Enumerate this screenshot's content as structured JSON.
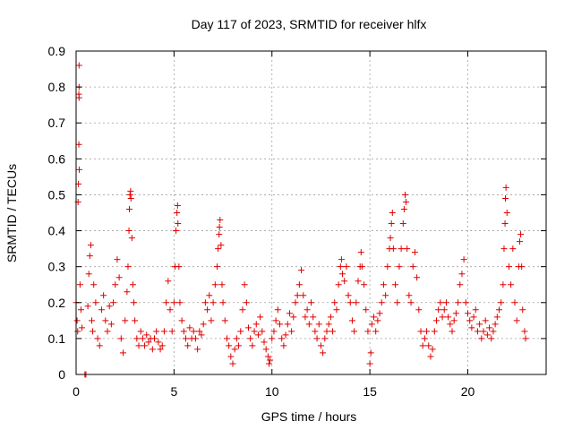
{
  "chart_data": {
    "type": "scatter",
    "title": "Day 117 of 2023, SRMTID for receiver hlfx",
    "xlabel": "GPS time / hours",
    "ylabel": "SRMTID / TECUs",
    "xlim": [
      0,
      24
    ],
    "ylim": [
      0,
      0.9
    ],
    "xticks": [
      0,
      5,
      10,
      15,
      20
    ],
    "yticks": [
      0,
      0.1,
      0.2,
      0.3,
      0.4,
      0.5,
      0.6,
      0.7,
      0.8,
      0.9
    ],
    "xtick_labels": [
      "0",
      "5",
      "10",
      "15",
      "20"
    ],
    "ytick_labels": [
      "0",
      "0.1",
      "0.2",
      "0.3",
      "0.4",
      "0.5",
      "0.6",
      "0.7",
      "0.8",
      "0.9"
    ],
    "grid": true,
    "marker": "+",
    "color": "#e00000",
    "series": [
      {
        "name": "SRMTID",
        "points": [
          [
            0.0,
            0.2
          ],
          [
            0.05,
            0.15
          ],
          [
            0.08,
            0.12
          ],
          [
            0.1,
            0.48
          ],
          [
            0.12,
            0.53
          ],
          [
            0.14,
            0.64
          ],
          [
            0.16,
            0.57
          ],
          [
            0.15,
            0.77
          ],
          [
            0.14,
            0.78
          ],
          [
            0.15,
            0.8
          ],
          [
            0.15,
            0.86
          ],
          [
            0.2,
            0.25
          ],
          [
            0.25,
            0.18
          ],
          [
            0.3,
            0.13
          ],
          [
            0.45,
            0.0
          ],
          [
            0.5,
            0.0
          ],
          [
            0.6,
            0.19
          ],
          [
            0.65,
            0.28
          ],
          [
            0.7,
            0.33
          ],
          [
            0.75,
            0.36
          ],
          [
            0.8,
            0.15
          ],
          [
            0.85,
            0.12
          ],
          [
            0.9,
            0.25
          ],
          [
            1.0,
            0.2
          ],
          [
            1.1,
            0.1
          ],
          [
            1.2,
            0.08
          ],
          [
            1.3,
            0.18
          ],
          [
            1.4,
            0.22
          ],
          [
            1.5,
            0.15
          ],
          [
            1.6,
            0.12
          ],
          [
            1.7,
            0.19
          ],
          [
            1.8,
            0.14
          ],
          [
            1.9,
            0.2
          ],
          [
            2.0,
            0.25
          ],
          [
            2.1,
            0.32
          ],
          [
            2.2,
            0.27
          ],
          [
            2.3,
            0.1
          ],
          [
            2.4,
            0.06
          ],
          [
            2.5,
            0.15
          ],
          [
            2.6,
            0.23
          ],
          [
            2.65,
            0.3
          ],
          [
            2.7,
            0.4
          ],
          [
            2.72,
            0.46
          ],
          [
            2.75,
            0.5
          ],
          [
            2.78,
            0.51
          ],
          [
            2.8,
            0.49
          ],
          [
            2.85,
            0.38
          ],
          [
            2.9,
            0.25
          ],
          [
            2.95,
            0.2
          ],
          [
            3.0,
            0.15
          ],
          [
            3.1,
            0.1
          ],
          [
            3.2,
            0.08
          ],
          [
            3.3,
            0.12
          ],
          [
            3.4,
            0.1
          ],
          [
            3.5,
            0.08
          ],
          [
            3.6,
            0.11
          ],
          [
            3.7,
            0.09
          ],
          [
            3.8,
            0.1
          ],
          [
            3.9,
            0.07
          ],
          [
            4.0,
            0.1
          ],
          [
            4.1,
            0.12
          ],
          [
            4.2,
            0.09
          ],
          [
            4.3,
            0.07
          ],
          [
            4.4,
            0.08
          ],
          [
            4.5,
            0.12
          ],
          [
            4.6,
            0.2
          ],
          [
            4.7,
            0.26
          ],
          [
            4.8,
            0.18
          ],
          [
            4.9,
            0.12
          ],
          [
            5.0,
            0.2
          ],
          [
            5.05,
            0.3
          ],
          [
            5.1,
            0.4
          ],
          [
            5.15,
            0.45
          ],
          [
            5.18,
            0.47
          ],
          [
            5.2,
            0.42
          ],
          [
            5.25,
            0.3
          ],
          [
            5.3,
            0.2
          ],
          [
            5.4,
            0.15
          ],
          [
            5.5,
            0.12
          ],
          [
            5.6,
            0.1
          ],
          [
            5.7,
            0.08
          ],
          [
            5.8,
            0.13
          ],
          [
            5.9,
            0.1
          ],
          [
            6.0,
            0.12
          ],
          [
            6.1,
            0.1
          ],
          [
            6.2,
            0.07
          ],
          [
            6.3,
            0.12
          ],
          [
            6.4,
            0.11
          ],
          [
            6.5,
            0.14
          ],
          [
            6.6,
            0.2
          ],
          [
            6.7,
            0.18
          ],
          [
            6.8,
            0.22
          ],
          [
            6.9,
            0.15
          ],
          [
            7.0,
            0.2
          ],
          [
            7.1,
            0.25
          ],
          [
            7.2,
            0.3
          ],
          [
            7.25,
            0.35
          ],
          [
            7.3,
            0.39
          ],
          [
            7.32,
            0.41
          ],
          [
            7.35,
            0.43
          ],
          [
            7.4,
            0.36
          ],
          [
            7.45,
            0.25
          ],
          [
            7.5,
            0.2
          ],
          [
            7.6,
            0.15
          ],
          [
            7.7,
            0.1
          ],
          [
            7.8,
            0.08
          ],
          [
            7.9,
            0.05
          ],
          [
            8.0,
            0.03
          ],
          [
            8.1,
            0.07
          ],
          [
            8.2,
            0.1
          ],
          [
            8.3,
            0.08
          ],
          [
            8.4,
            0.12
          ],
          [
            8.5,
            0.18
          ],
          [
            8.6,
            0.25
          ],
          [
            8.7,
            0.2
          ],
          [
            8.8,
            0.13
          ],
          [
            8.9,
            0.1
          ],
          [
            9.0,
            0.08
          ],
          [
            9.1,
            0.12
          ],
          [
            9.2,
            0.14
          ],
          [
            9.3,
            0.11
          ],
          [
            9.4,
            0.16
          ],
          [
            9.5,
            0.12
          ],
          [
            9.6,
            0.09
          ],
          [
            9.7,
            0.07
          ],
          [
            9.8,
            0.05
          ],
          [
            9.85,
            0.03
          ],
          [
            9.9,
            0.04
          ],
          [
            10.0,
            0.1
          ],
          [
            10.1,
            0.12
          ],
          [
            10.2,
            0.15
          ],
          [
            10.3,
            0.18
          ],
          [
            10.4,
            0.14
          ],
          [
            10.5,
            0.1
          ],
          [
            10.6,
            0.08
          ],
          [
            10.7,
            0.11
          ],
          [
            10.8,
            0.14
          ],
          [
            10.9,
            0.17
          ],
          [
            11.0,
            0.12
          ],
          [
            11.1,
            0.16
          ],
          [
            11.2,
            0.2
          ],
          [
            11.3,
            0.22
          ],
          [
            11.4,
            0.25
          ],
          [
            11.5,
            0.29
          ],
          [
            11.6,
            0.22
          ],
          [
            11.7,
            0.16
          ],
          [
            11.8,
            0.18
          ],
          [
            11.9,
            0.14
          ],
          [
            12.0,
            0.2
          ],
          [
            12.1,
            0.16
          ],
          [
            12.2,
            0.12
          ],
          [
            12.3,
            0.1
          ],
          [
            12.4,
            0.14
          ],
          [
            12.5,
            0.08
          ],
          [
            12.6,
            0.06
          ],
          [
            12.7,
            0.1
          ],
          [
            12.8,
            0.12
          ],
          [
            12.9,
            0.14
          ],
          [
            13.0,
            0.16
          ],
          [
            13.1,
            0.12
          ],
          [
            13.2,
            0.2
          ],
          [
            13.3,
            0.18
          ],
          [
            13.4,
            0.25
          ],
          [
            13.5,
            0.3
          ],
          [
            13.55,
            0.32
          ],
          [
            13.6,
            0.28
          ],
          [
            13.7,
            0.26
          ],
          [
            13.8,
            0.3
          ],
          [
            13.9,
            0.22
          ],
          [
            14.0,
            0.2
          ],
          [
            14.1,
            0.15
          ],
          [
            14.2,
            0.12
          ],
          [
            14.3,
            0.2
          ],
          [
            14.4,
            0.26
          ],
          [
            14.5,
            0.3
          ],
          [
            14.55,
            0.34
          ],
          [
            14.6,
            0.3
          ],
          [
            14.7,
            0.25
          ],
          [
            14.8,
            0.18
          ],
          [
            14.9,
            0.12
          ],
          [
            15.0,
            0.03
          ],
          [
            15.05,
            0.06
          ],
          [
            15.1,
            0.14
          ],
          [
            15.2,
            0.16
          ],
          [
            15.3,
            0.12
          ],
          [
            15.4,
            0.15
          ],
          [
            15.5,
            0.17
          ],
          [
            15.6,
            0.2
          ],
          [
            15.7,
            0.25
          ],
          [
            15.8,
            0.22
          ],
          [
            15.9,
            0.3
          ],
          [
            16.0,
            0.35
          ],
          [
            16.05,
            0.38
          ],
          [
            16.1,
            0.42
          ],
          [
            16.15,
            0.45
          ],
          [
            16.2,
            0.35
          ],
          [
            16.3,
            0.25
          ],
          [
            16.4,
            0.2
          ],
          [
            16.5,
            0.3
          ],
          [
            16.6,
            0.35
          ],
          [
            16.7,
            0.42
          ],
          [
            16.75,
            0.46
          ],
          [
            16.8,
            0.5
          ],
          [
            16.85,
            0.48
          ],
          [
            16.9,
            0.35
          ],
          [
            17.0,
            0.22
          ],
          [
            17.1,
            0.2
          ],
          [
            17.2,
            0.3
          ],
          [
            17.3,
            0.34
          ],
          [
            17.4,
            0.27
          ],
          [
            17.5,
            0.18
          ],
          [
            17.6,
            0.12
          ],
          [
            17.7,
            0.08
          ],
          [
            17.8,
            0.1
          ],
          [
            17.9,
            0.12
          ],
          [
            18.0,
            0.08
          ],
          [
            18.1,
            0.05
          ],
          [
            18.2,
            0.07
          ],
          [
            18.3,
            0.12
          ],
          [
            18.4,
            0.15
          ],
          [
            18.5,
            0.18
          ],
          [
            18.6,
            0.2
          ],
          [
            18.7,
            0.16
          ],
          [
            18.8,
            0.18
          ],
          [
            18.9,
            0.2
          ],
          [
            19.0,
            0.16
          ],
          [
            19.1,
            0.14
          ],
          [
            19.2,
            0.12
          ],
          [
            19.3,
            0.15
          ],
          [
            19.4,
            0.17
          ],
          [
            19.5,
            0.2
          ],
          [
            19.6,
            0.25
          ],
          [
            19.7,
            0.28
          ],
          [
            19.8,
            0.32
          ],
          [
            19.9,
            0.2
          ],
          [
            20.0,
            0.17
          ],
          [
            20.1,
            0.15
          ],
          [
            20.2,
            0.13
          ],
          [
            20.3,
            0.16
          ],
          [
            20.4,
            0.18
          ],
          [
            20.5,
            0.12
          ],
          [
            20.6,
            0.14
          ],
          [
            20.7,
            0.1
          ],
          [
            20.8,
            0.12
          ],
          [
            20.9,
            0.15
          ],
          [
            21.0,
            0.11
          ],
          [
            21.1,
            0.13
          ],
          [
            21.2,
            0.1
          ],
          [
            21.3,
            0.12
          ],
          [
            21.4,
            0.14
          ],
          [
            21.5,
            0.16
          ],
          [
            21.6,
            0.18
          ],
          [
            21.7,
            0.2
          ],
          [
            21.8,
            0.25
          ],
          [
            21.85,
            0.35
          ],
          [
            21.9,
            0.42
          ],
          [
            21.92,
            0.49
          ],
          [
            21.95,
            0.52
          ],
          [
            22.0,
            0.45
          ],
          [
            22.1,
            0.3
          ],
          [
            22.2,
            0.25
          ],
          [
            22.3,
            0.35
          ],
          [
            22.4,
            0.2
          ],
          [
            22.5,
            0.15
          ],
          [
            22.6,
            0.3
          ],
          [
            22.65,
            0.37
          ],
          [
            22.7,
            0.39
          ],
          [
            22.75,
            0.3
          ],
          [
            22.8,
            0.18
          ],
          [
            22.9,
            0.12
          ],
          [
            22.95,
            0.1
          ]
        ]
      }
    ]
  }
}
